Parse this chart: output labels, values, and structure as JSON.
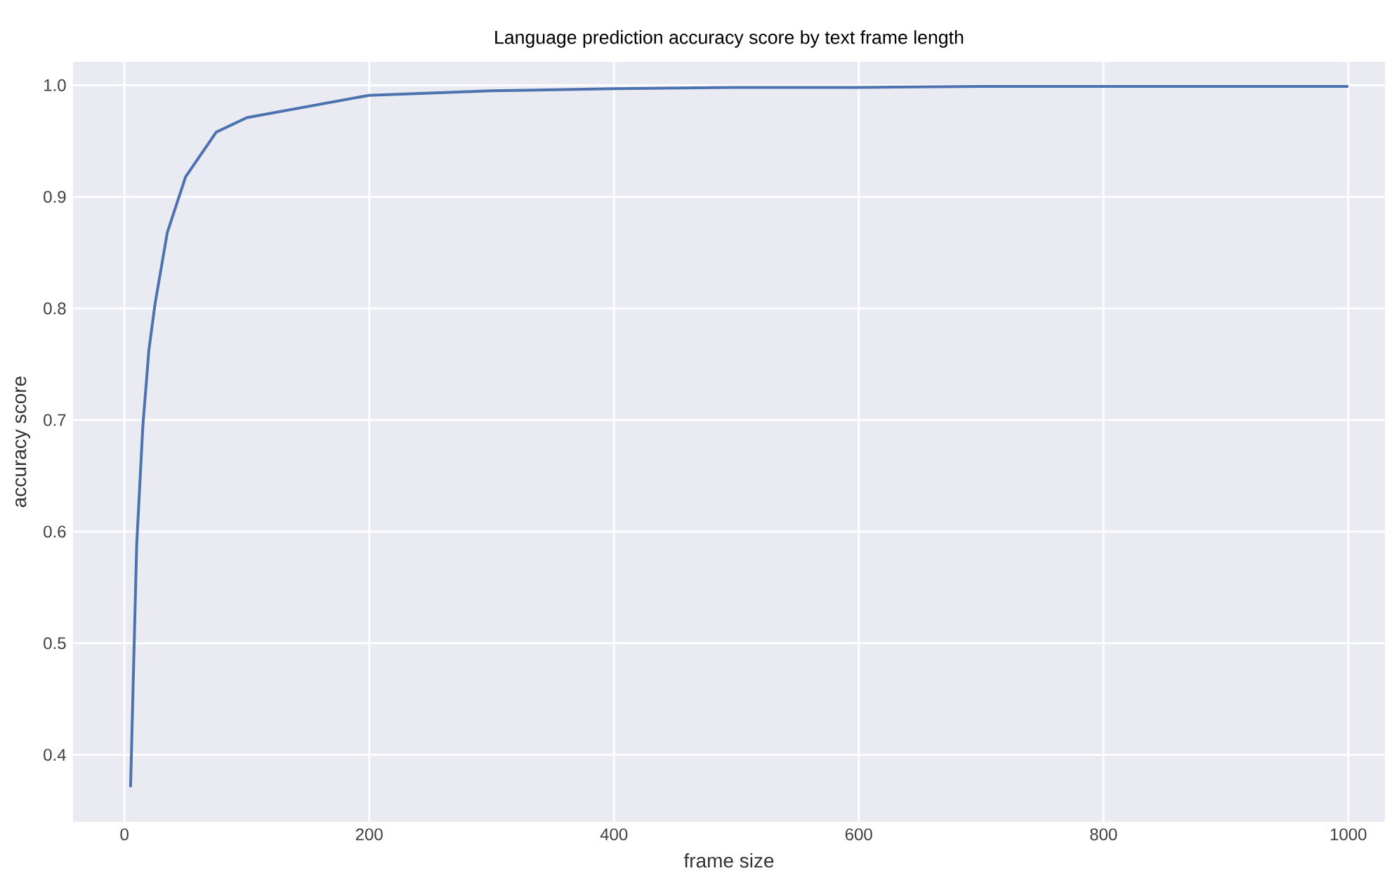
{
  "chart_data": {
    "type": "line",
    "title": "Language prediction accuracy score by text frame length",
    "xlabel": "frame size",
    "ylabel": "accuracy score",
    "x": [
      5,
      10,
      15,
      20,
      25,
      35,
      50,
      75,
      100,
      200,
      300,
      400,
      500,
      600,
      700,
      800,
      900,
      1000
    ],
    "series": [
      {
        "color": "#4c72b0",
        "values": [
          0.371,
          0.588,
          0.694,
          0.763,
          0.804,
          0.868,
          0.918,
          0.958,
          0.971,
          0.991,
          0.995,
          0.997,
          0.998,
          0.998,
          0.999,
          0.999,
          0.999,
          0.999
        ]
      }
    ],
    "xlim": [
      -42,
      1030
    ],
    "ylim": [
      0.34,
      1.021
    ],
    "xticks": [
      0,
      200,
      400,
      600,
      800,
      1000
    ],
    "yticks": [
      0.4,
      0.5,
      0.6,
      0.7,
      0.8,
      0.9,
      {
        "value": 1.0,
        "label": "1.0"
      }
    ],
    "grid": true,
    "marker": "none",
    "line_style": "solid"
  }
}
